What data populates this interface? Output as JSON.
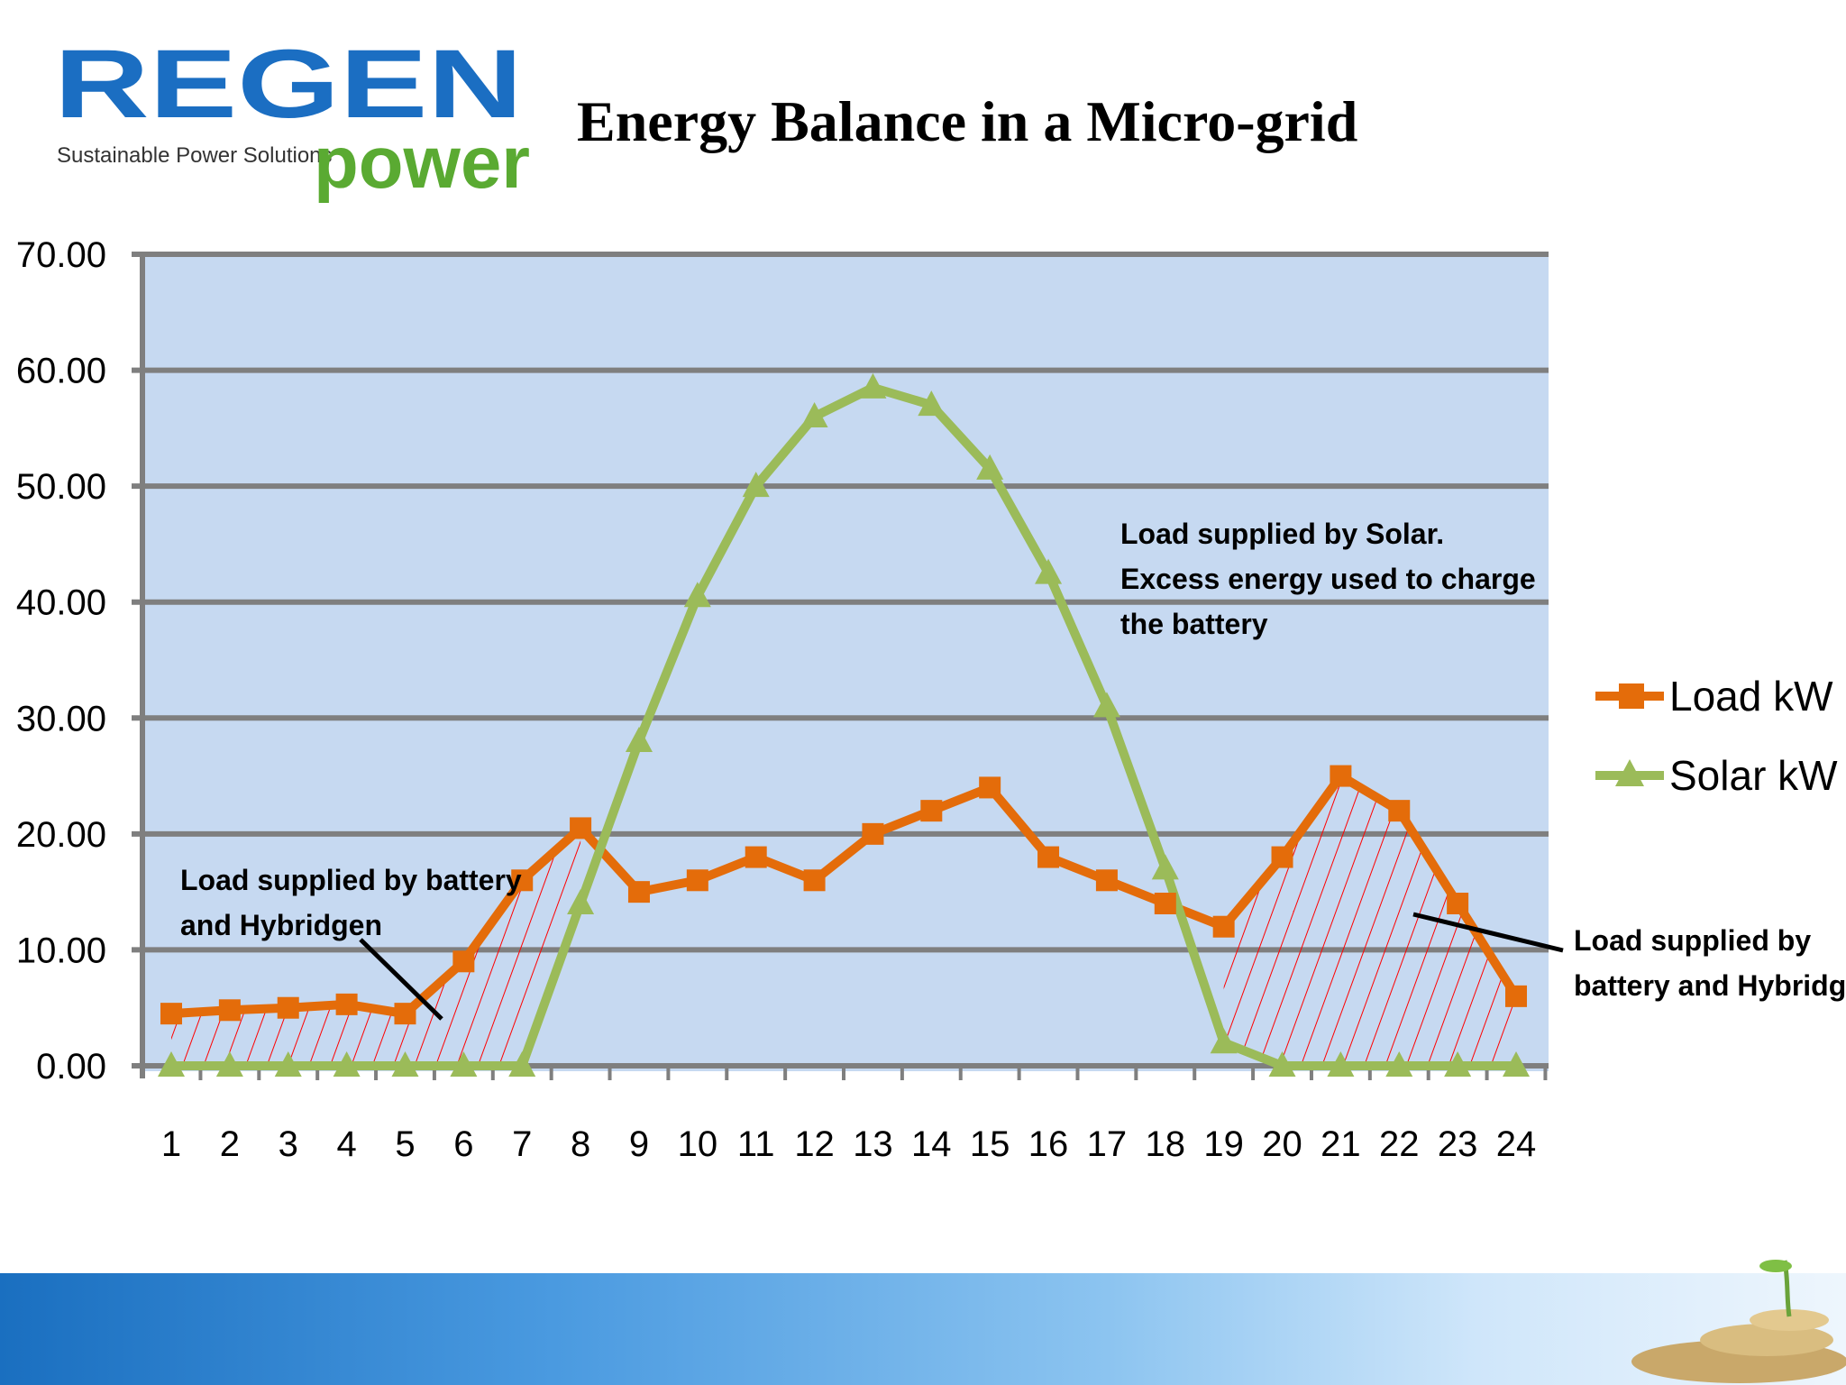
{
  "logo": {
    "brand_top": "REGEN",
    "brand_bottom": "power",
    "tagline": "Sustainable Power Solutions"
  },
  "slide": {
    "title": "Energy Balance in a Micro-grid"
  },
  "colors": {
    "plot_bg": "#c6d9f1",
    "grid": "#7f7f7f",
    "load": "#e46c0a",
    "solar": "#9bbb59",
    "hatch": "#ff0000",
    "footer": "#1a6fc0"
  },
  "chart_data": {
    "type": "line",
    "title": "",
    "xlabel": "",
    "ylabel": "",
    "x": [
      1,
      2,
      3,
      4,
      5,
      6,
      7,
      8,
      9,
      10,
      11,
      12,
      13,
      14,
      15,
      16,
      17,
      18,
      19,
      20,
      21,
      22,
      23,
      24
    ],
    "ylim": [
      0,
      70
    ],
    "y_ticks": [
      "0.00",
      "10.00",
      "20.00",
      "30.00",
      "40.00",
      "50.00",
      "60.00",
      "70.00"
    ],
    "grid": true,
    "legend_placement": "right",
    "series": [
      {
        "name": "Load kW",
        "marker": "square",
        "color": "#e46c0a",
        "values": [
          4.5,
          4.8,
          5.0,
          5.3,
          4.5,
          9.0,
          16.0,
          20.5,
          15.0,
          16.0,
          18.0,
          16.0,
          20.0,
          22.0,
          24.0,
          18.0,
          16.0,
          14.0,
          12.0,
          18.0,
          25.0,
          22.0,
          14.0,
          6.0
        ]
      },
      {
        "name": "Solar kW",
        "marker": "triangle",
        "color": "#9bbb59",
        "values": [
          0,
          0,
          0,
          0,
          0,
          0,
          0,
          14.0,
          28.0,
          40.5,
          50.0,
          56.0,
          58.5,
          57.0,
          51.5,
          42.5,
          31.0,
          17.0,
          2.0,
          0,
          0,
          0,
          0,
          0
        ]
      }
    ],
    "annotations": {
      "left": [
        "Load supplied by battery",
        "and Hybridgen"
      ],
      "center": [
        "Load supplied by Solar.",
        "Excess energy used to charge",
        "the battery"
      ],
      "right": [
        "Load supplied by",
        "battery and Hybridgen"
      ]
    }
  }
}
